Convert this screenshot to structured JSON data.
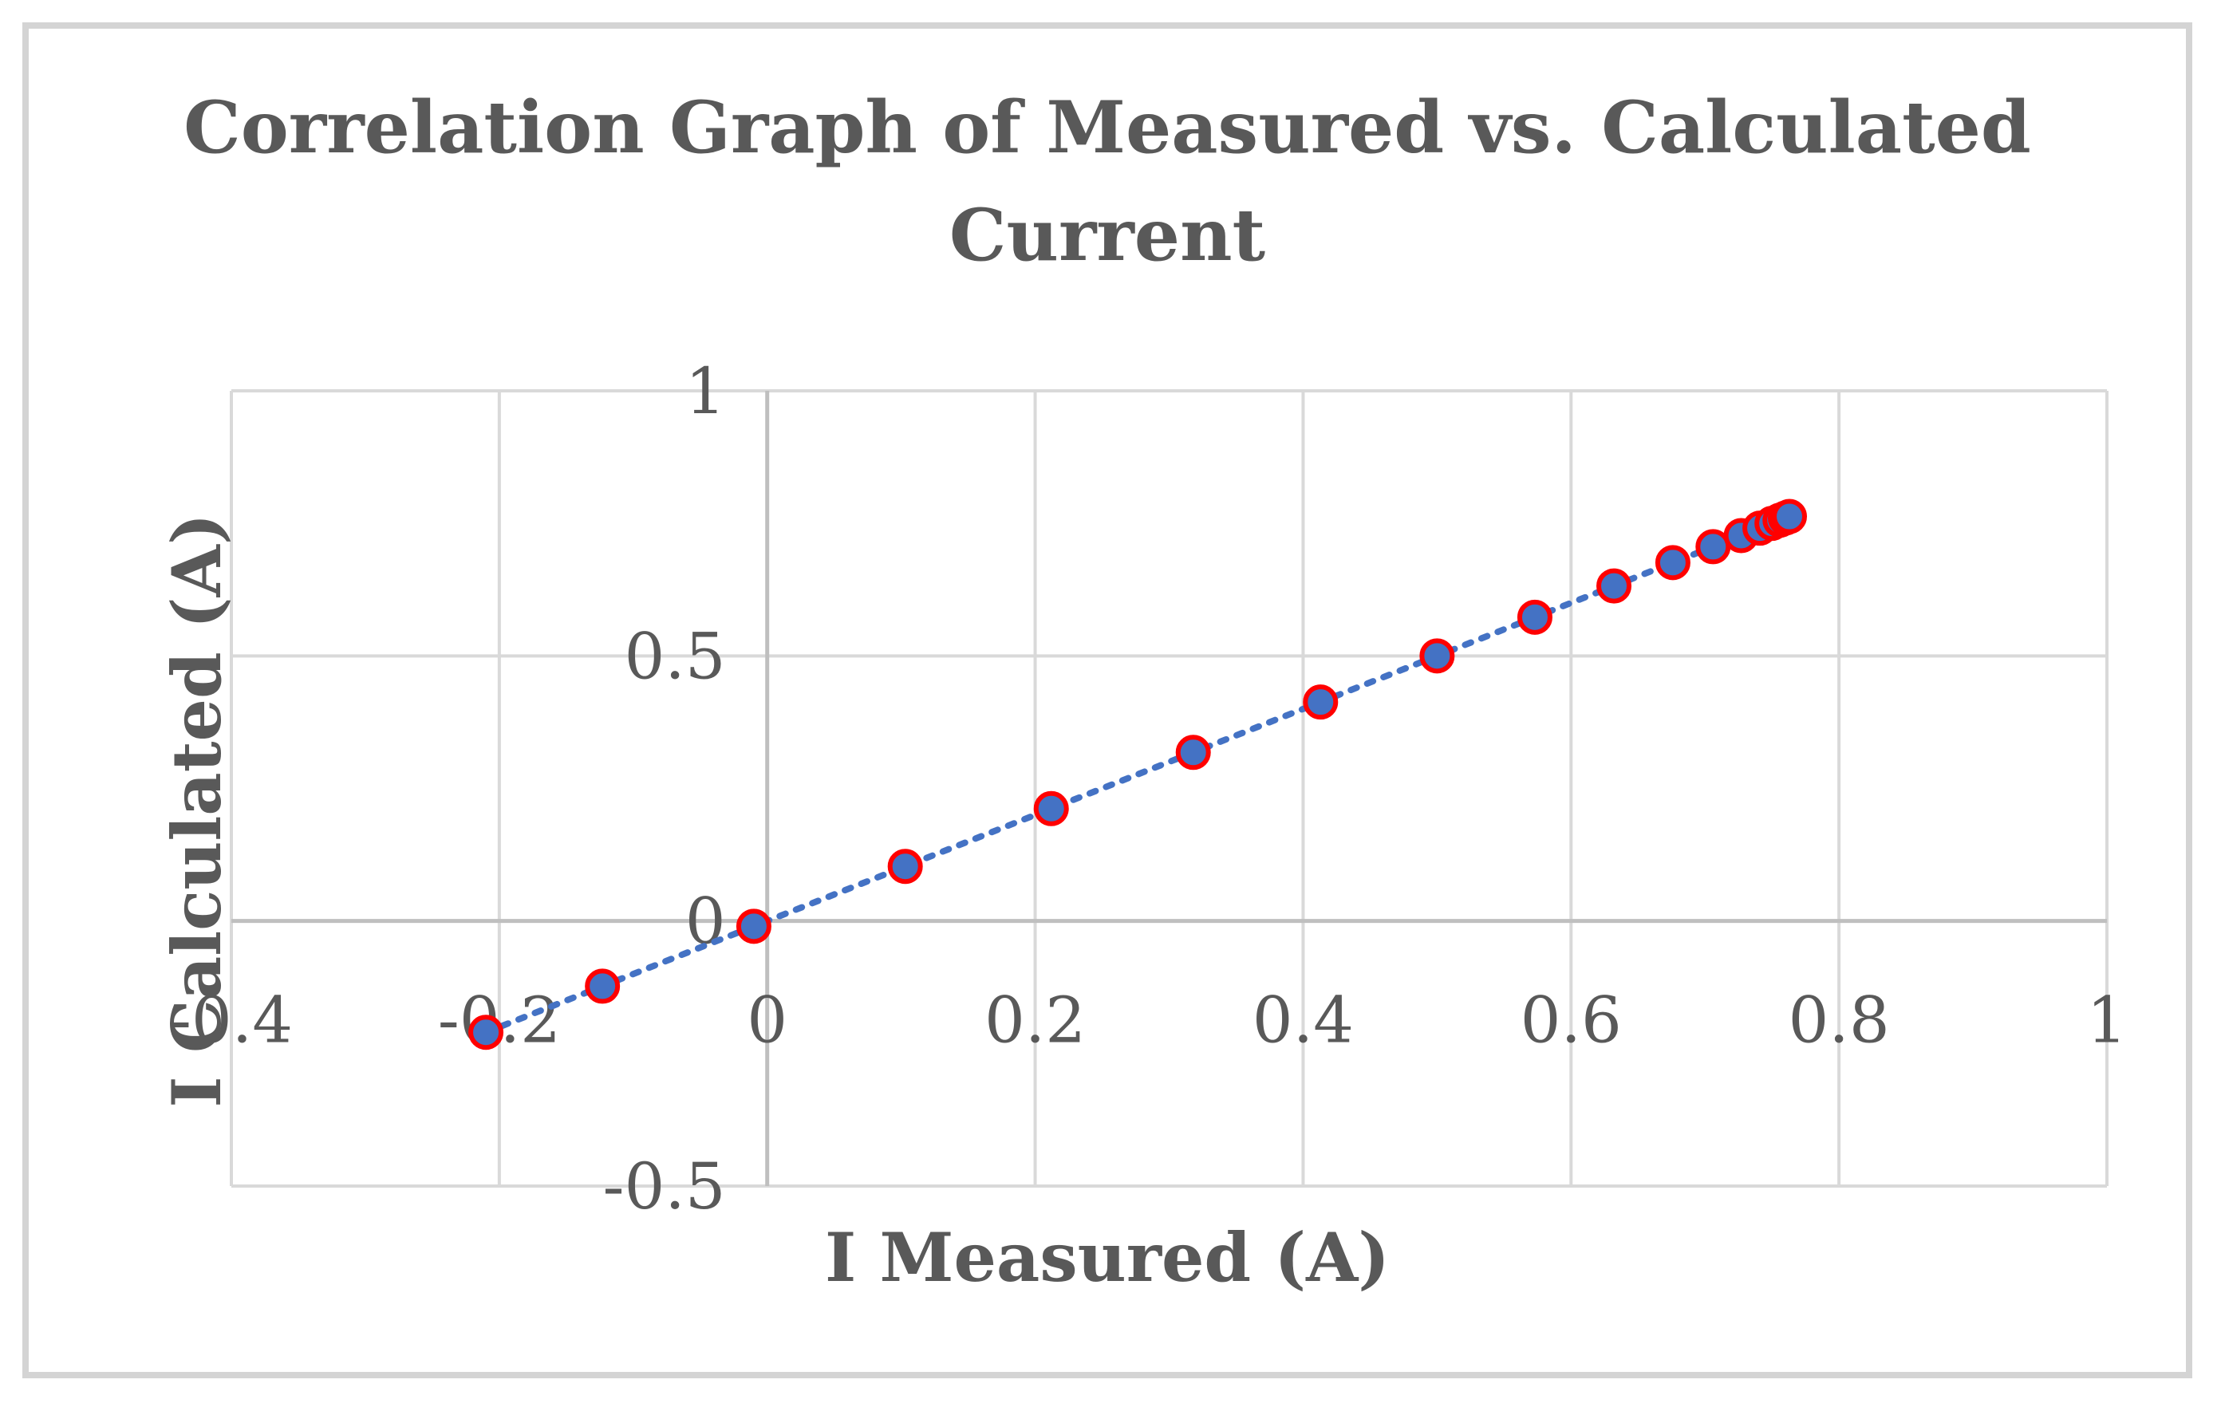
{
  "chart_data": {
    "type": "scatter",
    "title_lines": [
      "Correlation Graph of Measured vs. Calculated",
      "Current"
    ],
    "xlabel": "I Measured (A)",
    "ylabel": "I Calculated (A)",
    "xlim": [
      -0.4,
      1
    ],
    "ylim": [
      -0.5,
      1
    ],
    "x_ticks": [
      -0.4,
      -0.2,
      0,
      0.2,
      0.4,
      0.6,
      0.8,
      1
    ],
    "x_tick_labels": [
      "-0.4",
      "-0.2",
      "0",
      "0.2",
      "0.4",
      "0.6",
      "0.8",
      "1"
    ],
    "y_ticks": [
      -0.5,
      0,
      0.5,
      1
    ],
    "y_tick_labels": [
      "-0.5",
      "0",
      "0.5",
      "1"
    ],
    "grid": true,
    "marker_colors": {
      "fill": "#4472c4",
      "edge": "#ff0000"
    },
    "trendline": {
      "style": "dotted",
      "color": "#4472c4",
      "x_range": [
        -0.21,
        0.75
      ]
    },
    "x": [
      -0.21,
      -0.123,
      -0.01,
      0.103,
      0.212,
      0.318,
      0.413,
      0.5,
      0.573,
      0.632,
      0.676,
      0.706,
      0.727,
      0.741,
      0.75,
      0.756,
      0.76,
      0.763
    ],
    "y": [
      -0.21,
      -0.123,
      -0.01,
      0.103,
      0.212,
      0.318,
      0.413,
      0.5,
      0.573,
      0.632,
      0.676,
      0.706,
      0.727,
      0.741,
      0.75,
      0.756,
      0.76,
      0.763
    ]
  }
}
